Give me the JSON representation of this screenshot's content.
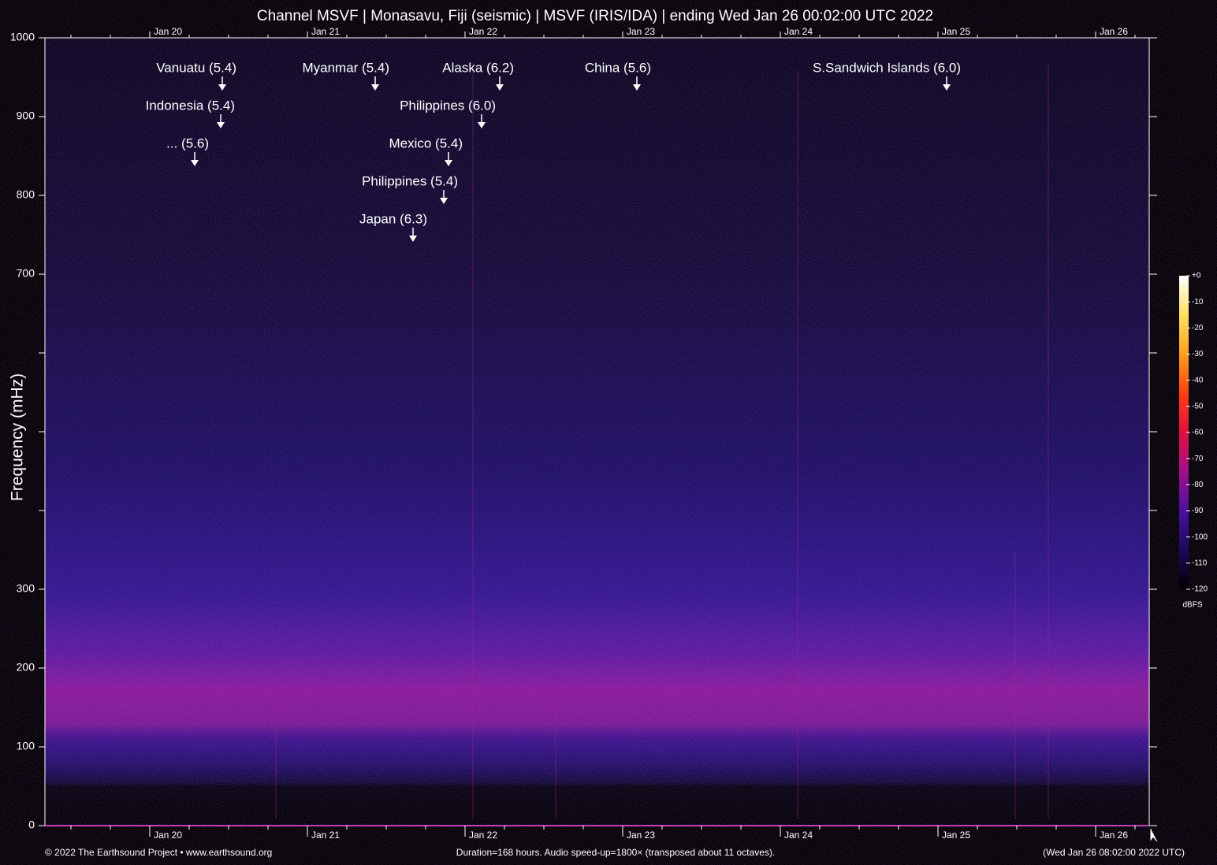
{
  "chart_data": {
    "type": "spectrogram",
    "title": "Channel MSVF | Monasavu, Fiji (seismic) | MSVF (IRIS/IDA) | ending Wed Jan 26 00:02:00 UTC 2022",
    "ylabel": "Frequency (mHz)",
    "ylim": [
      0,
      1000
    ],
    "yticks": [
      0,
      100,
      200,
      300,
      700,
      800,
      900,
      1000
    ],
    "minor_yticks": [
      400,
      500,
      600
    ],
    "xlim": [
      19.335,
      26.34
    ],
    "xticks": [
      {
        "value": 20,
        "label": "Jan 20"
      },
      {
        "value": 21,
        "label": "Jan 21"
      },
      {
        "value": 22,
        "label": "Jan 22"
      },
      {
        "value": 23,
        "label": "Jan 23"
      },
      {
        "value": 24,
        "label": "Jan 24"
      },
      {
        "value": 25,
        "label": "Jan 25"
      },
      {
        "value": 26,
        "label": "Jan 26"
      }
    ],
    "minor_xtick_step": 0.25,
    "annotations": [
      {
        "label": "Vanuatu (5.4)",
        "x": 20.46,
        "y": 933
      },
      {
        "label": "Indonesia (5.4)",
        "x": 20.45,
        "y": 885
      },
      {
        "label": "... (5.6)",
        "x": 20.285,
        "y": 837
      },
      {
        "label": "Myanmar (5.4)",
        "x": 21.43,
        "y": 933
      },
      {
        "label": "Alaska (6.2)",
        "x": 22.22,
        "y": 933
      },
      {
        "label": "Philippines (6.0)",
        "x": 22.105,
        "y": 885
      },
      {
        "label": "Mexico (5.4)",
        "x": 21.895,
        "y": 837
      },
      {
        "label": "Philippines (5.4)",
        "x": 21.865,
        "y": 789
      },
      {
        "label": "Japan (6.3)",
        "x": 21.67,
        "y": 741
      },
      {
        "label": "China (5.6)",
        "x": 23.09,
        "y": 933
      },
      {
        "label": "S.Sandwich Islands (6.0)",
        "x": 25.055,
        "y": 933
      }
    ],
    "colorbar": {
      "label": "dBFS",
      "lim": [
        -120,
        0
      ],
      "ticks": [
        {
          "value": 0,
          "label": "+0"
        },
        -10,
        -20,
        -30,
        -40,
        -50,
        -60,
        -70,
        -80,
        -90,
        -100,
        -110,
        -120
      ],
      "colors": [
        "#000000",
        "#1a0a5a",
        "#4a10a0",
        "#a0108a",
        "#e01040",
        "#ff4010",
        "#ffa020",
        "#ffe060",
        "#ffffff"
      ]
    },
    "footer_left": "© 2022 The Earthsound Project • www.earthsound.org",
    "footer_center": "Duration=168 hours. Audio speed-up=1800× (transposed about 11 octaves).",
    "footer_right": "(Wed Jan 26 08:02:00 2022 UTC)"
  }
}
